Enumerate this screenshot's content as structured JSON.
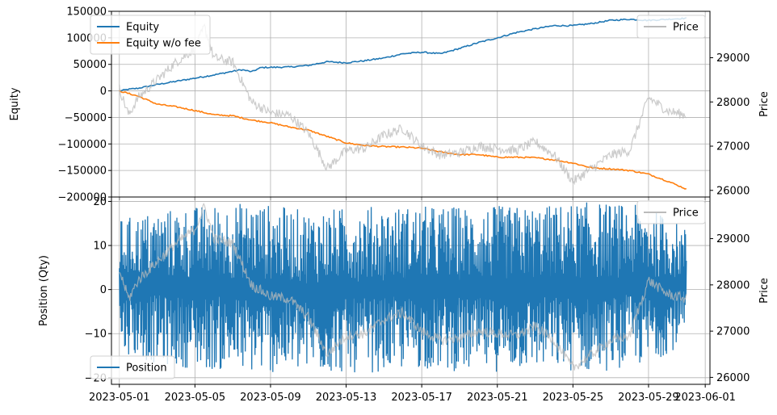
{
  "chart_data": [
    {
      "type": "line",
      "panel": "top",
      "ylabel": "Equity",
      "y2label": "Price",
      "xlabel": "",
      "title": "",
      "grid": true,
      "x_ticks": [
        "2023-05-01",
        "2023-05-05",
        "2023-05-09",
        "2023-05-13",
        "2023-05-17",
        "2023-05-21",
        "2023-05-25",
        "2023-05-29",
        "2023-06-01"
      ],
      "x_range": [
        "2023-04-30",
        "2023-06-01"
      ],
      "y_ticks": [
        "150000",
        "100000",
        "50000",
        "0",
        "−50000",
        "−100000",
        "−150000",
        "−200000"
      ],
      "y2_ticks": [
        "29000",
        "28000",
        "27000",
        "26000"
      ],
      "ylim": [
        -200000,
        150000
      ],
      "y2lim": [
        25850,
        30050
      ],
      "legend_left": {
        "position": "top-left",
        "entries": [
          "Equity",
          "Equity w/o fee"
        ]
      },
      "legend_right": {
        "position": "top-right",
        "entries": [
          "Price"
        ]
      },
      "series": [
        {
          "name": "Equity",
          "axis": "left",
          "color": "#1f77b4",
          "points": [
            [
              "2023-05-01",
              0
            ],
            [
              "2023-05-01 12:00",
              3000
            ],
            [
              "2023-05-02",
              5000
            ],
            [
              "2023-05-03",
              12000
            ],
            [
              "2023-05-04",
              18000
            ],
            [
              "2023-05-05",
              24000
            ],
            [
              "2023-05-06",
              30000
            ],
            [
              "2023-05-07",
              37000
            ],
            [
              "2023-05-07 12:00",
              40000
            ],
            [
              "2023-05-08",
              36000
            ],
            [
              "2023-05-08 12:00",
              44000
            ],
            [
              "2023-05-10",
              45000
            ],
            [
              "2023-05-11",
              48000
            ],
            [
              "2023-05-12",
              55000
            ],
            [
              "2023-05-13",
              53000
            ],
            [
              "2023-05-14",
              57000
            ],
            [
              "2023-05-15",
              62000
            ],
            [
              "2023-05-16",
              70000
            ],
            [
              "2023-05-17",
              73000
            ],
            [
              "2023-05-18",
              70000
            ],
            [
              "2023-05-19",
              80000
            ],
            [
              "2023-05-20",
              91000
            ],
            [
              "2023-05-21",
              100000
            ],
            [
              "2023-05-22",
              110000
            ],
            [
              "2023-05-23",
              117000
            ],
            [
              "2023-05-24",
              123000
            ],
            [
              "2023-05-25",
              123000
            ],
            [
              "2023-05-26",
              127000
            ],
            [
              "2023-05-27",
              133000
            ],
            [
              "2023-05-28",
              135000
            ],
            [
              "2023-05-29",
              133000
            ],
            [
              "2023-05-30",
              135000
            ],
            [
              "2023-05-31",
              137000
            ]
          ]
        },
        {
          "name": "Equity w/o fee",
          "axis": "left",
          "color": "#ff7f0e",
          "points": [
            [
              "2023-05-01",
              0
            ],
            [
              "2023-05-02",
              -10000
            ],
            [
              "2023-05-03",
              -25000
            ],
            [
              "2023-05-04",
              -30000
            ],
            [
              "2023-05-05",
              -37000
            ],
            [
              "2023-05-06",
              -45000
            ],
            [
              "2023-05-07",
              -47000
            ],
            [
              "2023-05-08",
              -55000
            ],
            [
              "2023-05-09",
              -60000
            ],
            [
              "2023-05-10",
              -68000
            ],
            [
              "2023-05-11",
              -74000
            ],
            [
              "2023-05-12",
              -86000
            ],
            [
              "2023-05-13",
              -98000
            ],
            [
              "2023-05-14",
              -103000
            ],
            [
              "2023-05-15",
              -105000
            ],
            [
              "2023-05-16",
              -106000
            ],
            [
              "2023-05-17",
              -108000
            ],
            [
              "2023-05-18",
              -115000
            ],
            [
              "2023-05-19",
              -120000
            ],
            [
              "2023-05-20",
              -120000
            ],
            [
              "2023-05-21",
              -125000
            ],
            [
              "2023-05-22",
              -125000
            ],
            [
              "2023-05-23",
              -126000
            ],
            [
              "2023-05-24",
              -130000
            ],
            [
              "2023-05-25",
              -136000
            ],
            [
              "2023-05-26",
              -145000
            ],
            [
              "2023-05-27",
              -147000
            ],
            [
              "2023-05-28",
              -150000
            ],
            [
              "2023-05-29",
              -157000
            ],
            [
              "2023-05-30",
              -170000
            ],
            [
              "2023-05-31",
              -185000
            ]
          ]
        },
        {
          "name": "Price",
          "axis": "right",
          "color": "#bbbbbb",
          "points": [
            [
              "2023-05-01",
              28300
            ],
            [
              "2023-05-01 12:00",
              27700
            ],
            [
              "2023-05-02",
              28100
            ],
            [
              "2023-05-03",
              28500
            ],
            [
              "2023-05-04",
              28900
            ],
            [
              "2023-05-05",
              29200
            ],
            [
              "2023-05-05 12:00",
              29700
            ],
            [
              "2023-05-06",
              29000
            ],
            [
              "2023-05-07",
              28900
            ],
            [
              "2023-05-08",
              28000
            ],
            [
              "2023-05-09",
              27750
            ],
            [
              "2023-05-10",
              27700
            ],
            [
              "2023-05-11",
              27300
            ],
            [
              "2023-05-12",
              26500
            ],
            [
              "2023-05-13",
              26900
            ],
            [
              "2023-05-14",
              26950
            ],
            [
              "2023-05-15",
              27250
            ],
            [
              "2023-05-16",
              27400
            ],
            [
              "2023-05-17",
              27000
            ],
            [
              "2023-05-18",
              26800
            ],
            [
              "2023-05-19",
              26850
            ],
            [
              "2023-05-20",
              27000
            ],
            [
              "2023-05-21",
              26950
            ],
            [
              "2023-05-22",
              26900
            ],
            [
              "2023-05-23",
              27100
            ],
            [
              "2023-05-24",
              26800
            ],
            [
              "2023-05-25",
              26200
            ],
            [
              "2023-05-26",
              26500
            ],
            [
              "2023-05-27",
              26800
            ],
            [
              "2023-05-28",
              26900
            ],
            [
              "2023-05-29",
              28100
            ],
            [
              "2023-05-30",
              27800
            ],
            [
              "2023-05-31",
              27700
            ]
          ]
        }
      ]
    },
    {
      "type": "line",
      "panel": "bottom",
      "ylabel": "Position (Qty)",
      "y2label": "Price",
      "xlabel": "",
      "title": "",
      "grid": true,
      "x_ticks": [
        "2023-05-01",
        "2023-05-05",
        "2023-05-09",
        "2023-05-13",
        "2023-05-17",
        "2023-05-21",
        "2023-05-25",
        "2023-05-29",
        "2023-06-01"
      ],
      "x_range": [
        "2023-04-30",
        "2023-06-01"
      ],
      "y_ticks": [
        "20",
        "10",
        "0",
        "−10",
        "−20"
      ],
      "y2_ticks": [
        "29000",
        "28000",
        "27000",
        "26000"
      ],
      "ylim": [
        -21.5,
        21
      ],
      "y2lim": [
        25850,
        29900
      ],
      "legend_left": {
        "position": "bottom-left",
        "entries": [
          "Position"
        ]
      },
      "legend_right": {
        "position": "top-right",
        "entries": [
          "Price"
        ]
      },
      "series": [
        {
          "name": "Position",
          "axis": "left",
          "color": "#1f77b4",
          "style": "dense oscillation",
          "envelope": {
            "x": [
              "2023-05-01",
              "2023-05-03",
              "2023-05-05",
              "2023-05-08",
              "2023-05-11",
              "2023-05-14",
              "2023-05-17",
              "2023-05-20",
              "2023-05-23",
              "2023-05-26",
              "2023-05-29",
              "2023-05-31"
            ],
            "max": [
              16,
              18,
              19,
              20,
              18,
              19,
              19,
              19,
              19,
              20,
              19,
              14
            ],
            "min": [
              -14,
              -17,
              -18,
              -19,
              -19,
              -19,
              -18,
              -19,
              -18,
              -19,
              -17,
              -12
            ]
          }
        },
        {
          "name": "Price",
          "axis": "right",
          "color": "#bbbbbb",
          "points": [
            [
              "2023-05-01",
              28300
            ],
            [
              "2023-05-01 12:00",
              27700
            ],
            [
              "2023-05-02",
              28100
            ],
            [
              "2023-05-03",
              28500
            ],
            [
              "2023-05-04",
              28900
            ],
            [
              "2023-05-05",
              29200
            ],
            [
              "2023-05-05 12:00",
              29700
            ],
            [
              "2023-05-06",
              29000
            ],
            [
              "2023-05-07",
              28900
            ],
            [
              "2023-05-08",
              28000
            ],
            [
              "2023-05-09",
              27750
            ],
            [
              "2023-05-10",
              27700
            ],
            [
              "2023-05-11",
              27300
            ],
            [
              "2023-05-12",
              26500
            ],
            [
              "2023-05-13",
              26900
            ],
            [
              "2023-05-14",
              26950
            ],
            [
              "2023-05-15",
              27250
            ],
            [
              "2023-05-16",
              27400
            ],
            [
              "2023-05-17",
              27000
            ],
            [
              "2023-05-18",
              26800
            ],
            [
              "2023-05-19",
              26850
            ],
            [
              "2023-05-20",
              27000
            ],
            [
              "2023-05-21",
              26950
            ],
            [
              "2023-05-22",
              26900
            ],
            [
              "2023-05-23",
              27100
            ],
            [
              "2023-05-24",
              26800
            ],
            [
              "2023-05-25",
              26200
            ],
            [
              "2023-05-26",
              26500
            ],
            [
              "2023-05-27",
              26800
            ],
            [
              "2023-05-28",
              26900
            ],
            [
              "2023-05-29",
              28100
            ],
            [
              "2023-05-30",
              27800
            ],
            [
              "2023-05-31",
              27700
            ]
          ]
        }
      ]
    }
  ]
}
